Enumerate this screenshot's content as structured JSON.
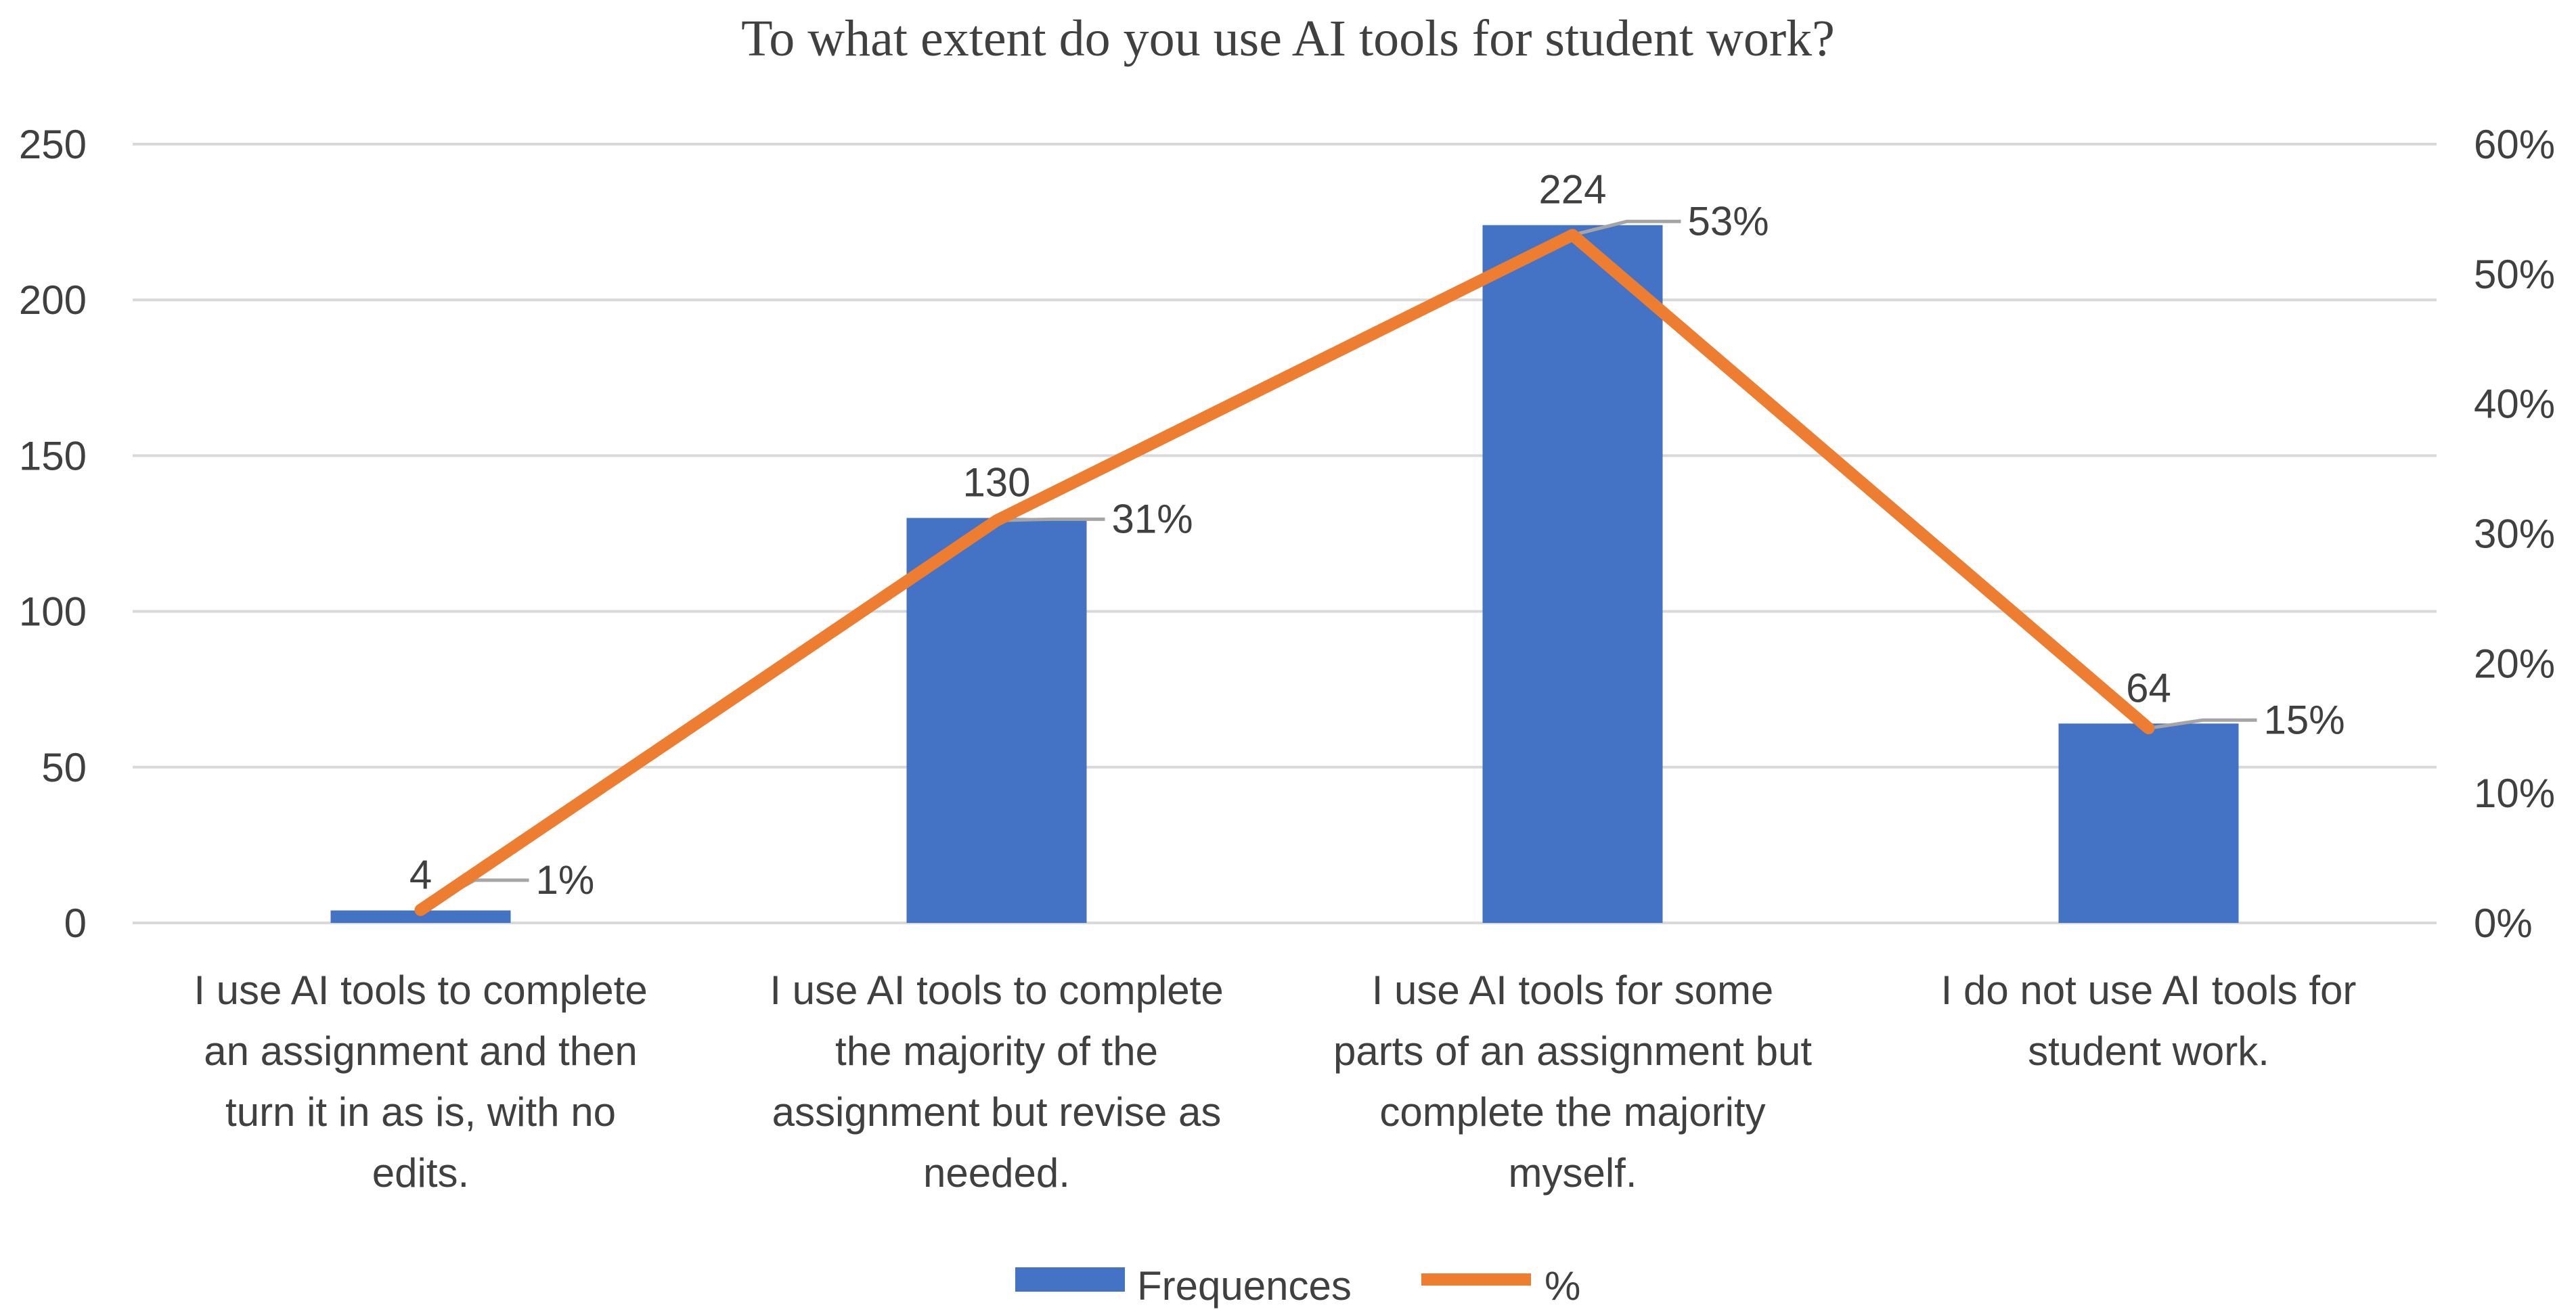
{
  "chart_data": {
    "type": "bar",
    "title": "To what extent do you use AI tools for student work?",
    "categories": [
      [
        "I use AI tools to complete",
        "an assignment and then",
        "turn it in as is, with no",
        "edits."
      ],
      [
        "I use AI tools to complete",
        "the majority of the",
        "assignment but revise as",
        "needed."
      ],
      [
        "I use AI tools for some",
        "parts of an assignment but",
        "complete the majority",
        "myself."
      ],
      [
        "I do not use AI tools for",
        "student work."
      ]
    ],
    "series": [
      {
        "name": "Frequences",
        "type": "bar",
        "axis": "left",
        "color": "#4472C4",
        "values": [
          4,
          130,
          224,
          64
        ],
        "labels": [
          "4",
          "130",
          "224",
          "64"
        ]
      },
      {
        "name": "%",
        "type": "line",
        "axis": "right",
        "color": "#ED7D31",
        "values": [
          0.01,
          0.31,
          0.53,
          0.15
        ],
        "labels": [
          "1%",
          "31%",
          "53%",
          "15%"
        ]
      }
    ],
    "y_left": {
      "min": 0,
      "max": 250,
      "ticks": [
        "0",
        "50",
        "100",
        "150",
        "200",
        "250"
      ]
    },
    "y_right": {
      "min": 0,
      "max": 0.6,
      "ticks": [
        "0%",
        "10%",
        "20%",
        "30%",
        "40%",
        "50%",
        "60%"
      ]
    },
    "grid": true,
    "legend": "bottom",
    "leader_line_color": "#A5A5A5",
    "grid_color": "#D9D9D9"
  }
}
